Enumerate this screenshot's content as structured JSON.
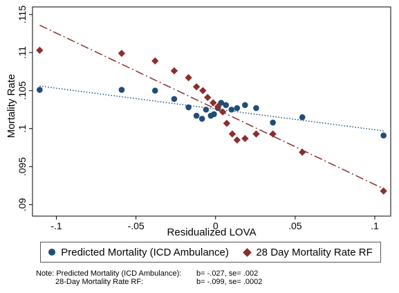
{
  "chart_data": {
    "type": "scatter",
    "xlabel": "Residualized LOVA",
    "ylabel": "Mortality Rate",
    "xlim": [
      -0.115,
      0.11
    ],
    "ylim": [
      0.0885,
      0.116
    ],
    "x_ticks": [
      -0.1,
      -0.05,
      0,
      0.05,
      0.1
    ],
    "x_tick_labels": [
      "-.1",
      "-.05",
      "0",
      ".05",
      ".1"
    ],
    "y_ticks": [
      0.09,
      0.095,
      0.1,
      0.105,
      0.11,
      0.115
    ],
    "y_tick_labels": [
      ".09",
      ".095",
      ".1",
      ".105",
      ".11",
      ".115"
    ],
    "grid": false,
    "legend_position": "bottom",
    "series": [
      {
        "name": "Predicted Mortality (ICD Ambulance)",
        "marker": "circle",
        "color": "#1f4e79",
        "points": [
          [
            -0.1105,
            0.1051
          ],
          [
            -0.059,
            0.1051
          ],
          [
            -0.038,
            0.105
          ],
          [
            -0.026,
            0.1039
          ],
          [
            -0.017,
            0.1028
          ],
          [
            -0.012,
            0.1017
          ],
          [
            -0.0085,
            0.1013
          ],
          [
            -0.006,
            0.1025
          ],
          [
            -0.003,
            0.1017
          ],
          [
            -0.001,
            0.1019
          ],
          [
            0.0015,
            0.1027
          ],
          [
            0.0035,
            0.1034
          ],
          [
            0.0065,
            0.1031
          ],
          [
            0.01,
            0.1025
          ],
          [
            0.0135,
            0.1027
          ],
          [
            0.0185,
            0.1031
          ],
          [
            0.0255,
            0.1027
          ],
          [
            0.036,
            0.1008
          ],
          [
            0.0545,
            0.1015
          ],
          [
            0.1055,
            0.0991
          ]
        ]
      },
      {
        "name": "28 Day Mortality Rate RF",
        "marker": "diamond",
        "color": "#8b2e2e",
        "points": [
          [
            -0.1105,
            0.1103
          ],
          [
            -0.059,
            0.1099
          ],
          [
            -0.038,
            0.1089
          ],
          [
            -0.026,
            0.1076
          ],
          [
            -0.017,
            0.1067
          ],
          [
            -0.012,
            0.1055
          ],
          [
            -0.008,
            0.105
          ],
          [
            -0.005,
            0.1041
          ],
          [
            -0.0015,
            0.1034
          ],
          [
            0.0015,
            0.1029
          ],
          [
            0.0045,
            0.1022
          ],
          [
            0.007,
            0.1007
          ],
          [
            0.0105,
            0.0993
          ],
          [
            0.0135,
            0.0985
          ],
          [
            0.0185,
            0.0987
          ],
          [
            0.0255,
            0.0993
          ],
          [
            0.036,
            0.0993
          ],
          [
            0.0545,
            0.0969
          ],
          [
            0.1055,
            0.0918
          ]
        ]
      }
    ],
    "fit_lines": [
      {
        "series": "Predicted Mortality (ICD Ambulance)",
        "style": "dotted",
        "color": "#1f4e79",
        "x": [
          -0.1105,
          0.1055
        ],
        "y": [
          0.1056,
          0.0997
        ]
      },
      {
        "series": "28 Day Mortality Rate RF",
        "style": "longdash-dot",
        "color": "#8b2e2e",
        "x": [
          -0.1105,
          0.1055
        ],
        "y": [
          0.1136,
          0.0921
        ]
      }
    ]
  },
  "note": {
    "line1_label": "Note: Predicted Mortality (ICD Ambulance):",
    "line1_value": "b= -.027, se= .002",
    "line2_label": "28-Day Mortality Rate RF:",
    "line2_value": "b= -.099, se= .0002"
  }
}
